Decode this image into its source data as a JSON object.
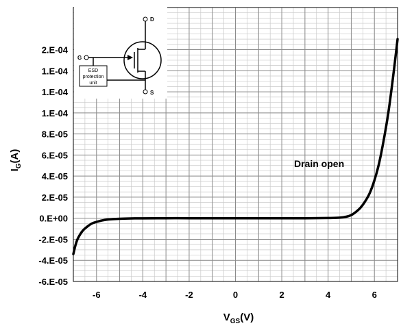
{
  "chart_data": {
    "type": "line",
    "xlabel": {
      "main": "V",
      "sub": "GS",
      "unit": "(V)"
    },
    "ylabel": {
      "main": "I",
      "sub": "G",
      "unit": "(A)"
    },
    "xlim": [
      -7,
      7
    ],
    "ylim": [
      -6e-05,
      0.0002
    ],
    "x_ticks": [
      -6,
      -4,
      -2,
      0,
      2,
      4,
      6
    ],
    "x_tick_labels": [
      "-6",
      "-4",
      "-2",
      "0",
      "2",
      "4",
      "6"
    ],
    "y_ticks": [
      -6e-05,
      -4e-05,
      -2e-05,
      0,
      2e-05,
      4e-05,
      6e-05,
      8e-05,
      0.0001,
      0.00012,
      0.00014,
      0.00016
    ],
    "y_tick_labels": [
      "-6.E-05",
      "-4.E-05",
      "-2.E-05",
      "0.E+00",
      "2.E-05",
      "4.E-05",
      "6.E-05",
      "8.E-05",
      "1.E-04",
      "1.E-04",
      "1.E-04",
      "2.E-04"
    ],
    "grid": true,
    "series": [
      {
        "x": [
          -7.0,
          -6.9,
          -6.8,
          -6.6,
          -6.4,
          -6.2,
          -6.0,
          -5.8,
          -5.5,
          -5.0,
          -4.5,
          -4.0,
          -3.0,
          -2.0,
          -1.0,
          0.0,
          1.0,
          2.0,
          3.0,
          4.0,
          4.5,
          4.8,
          5.0,
          5.2,
          5.4,
          5.6,
          5.8,
          6.0,
          6.2,
          6.4,
          6.6,
          6.8,
          7.0
        ],
        "y": [
          -3.4e-05,
          -2.5e-05,
          -1.9e-05,
          -1.2e-05,
          -8e-06,
          -5e-06,
          -3.5e-06,
          -2.3e-06,
          -1.2e-06,
          -5e-07,
          -2e-07,
          -1e-07,
          0,
          0,
          0,
          0,
          0,
          0,
          0,
          2e-07,
          5e-07,
          1.5e-06,
          3e-06,
          6e-06,
          1e-05,
          1.6e-05,
          2.4e-05,
          3.6e-05,
          5.2e-05,
          7.4e-05,
          0.0001,
          0.000133,
          0.00017
        ],
        "color": "#000000"
      }
    ],
    "annotations": [
      {
        "text": "Drain open",
        "x": 5.5,
        "y": 3.4e-05
      }
    ],
    "inset": {
      "labels": {
        "gate": "G",
        "drain": "D",
        "source": "S"
      },
      "esd_box": [
        "ESD",
        "protection",
        "unit"
      ]
    }
  }
}
